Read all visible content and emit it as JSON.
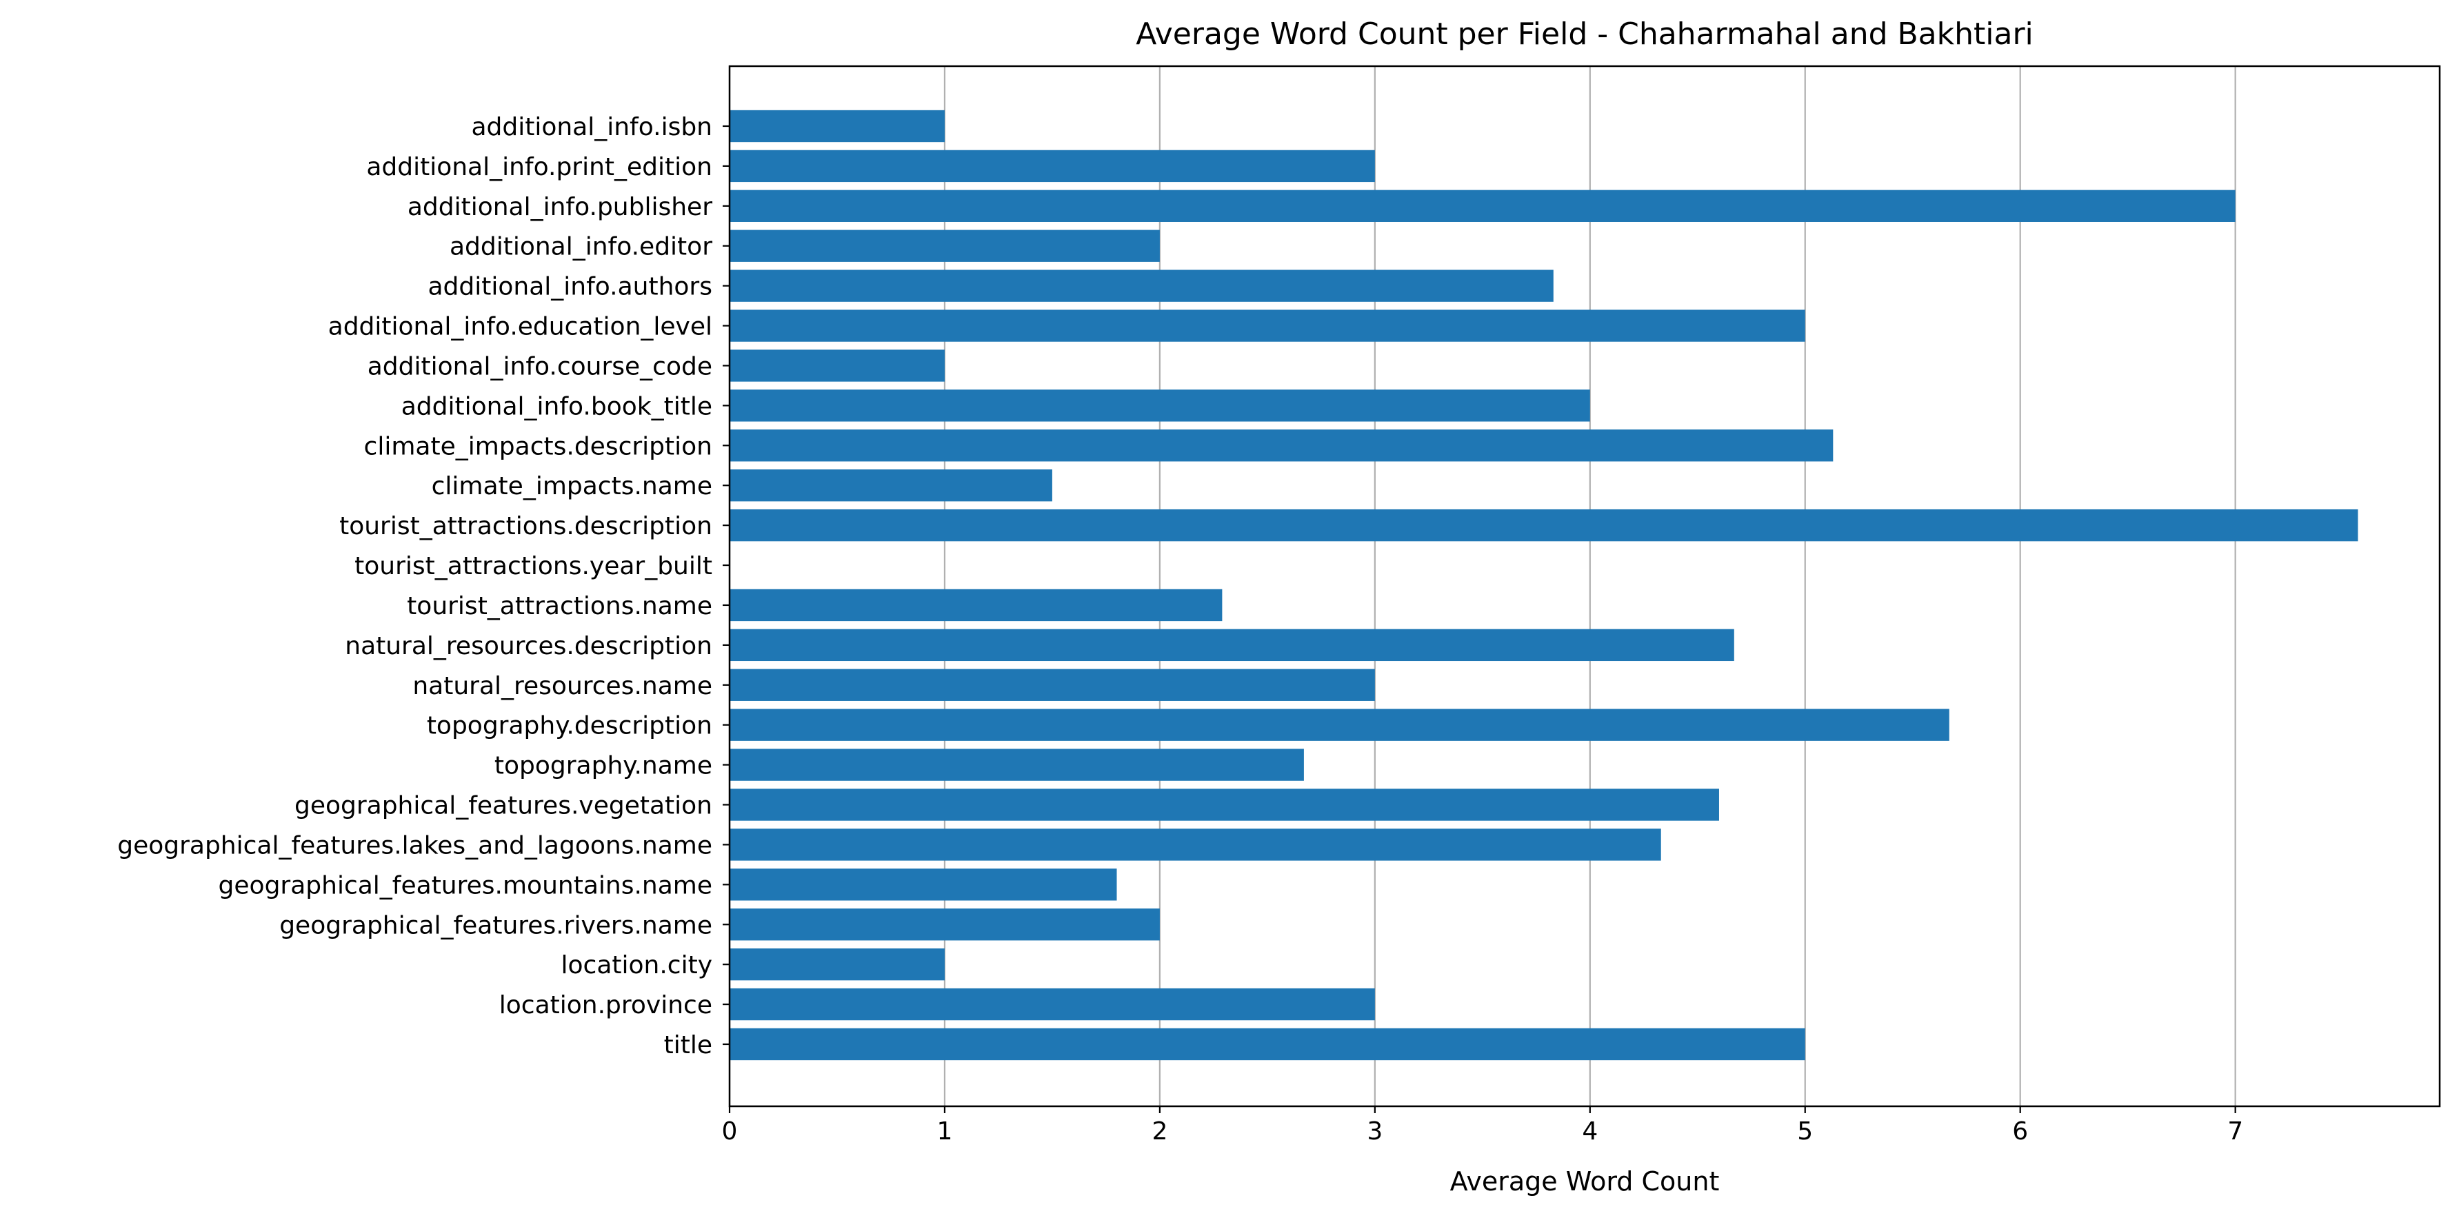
{
  "chart_data": {
    "type": "bar",
    "orientation": "horizontal",
    "title": "Average Word Count per Field - Chaharmahal and Bakhtiari",
    "xlabel": "Average Word Count",
    "ylabel": "",
    "xlim": [
      0,
      7.95
    ],
    "xticks": [
      "0",
      "1",
      "2",
      "3",
      "4",
      "5",
      "6",
      "7"
    ],
    "grid": "x",
    "bar_color": "#1f77b4",
    "categories": [
      "title",
      "location.province",
      "location.city",
      "geographical_features.rivers.name",
      "geographical_features.mountains.name",
      "geographical_features.lakes_and_lagoons.name",
      "geographical_features.vegetation",
      "topography.name",
      "topography.description",
      "natural_resources.name",
      "natural_resources.description",
      "tourist_attractions.name",
      "tourist_attractions.year_built",
      "tourist_attractions.description",
      "climate_impacts.name",
      "climate_impacts.description",
      "additional_info.book_title",
      "additional_info.course_code",
      "additional_info.education_level",
      "additional_info.authors",
      "additional_info.editor",
      "additional_info.publisher",
      "additional_info.print_edition",
      "additional_info.isbn"
    ],
    "values": [
      5,
      3,
      1,
      2,
      1.8,
      4.33,
      4.6,
      2.67,
      5.67,
      3,
      4.67,
      2.29,
      0,
      7.57,
      1.5,
      5.13,
      4,
      1,
      5,
      3.83,
      2,
      7,
      3,
      1
    ]
  }
}
